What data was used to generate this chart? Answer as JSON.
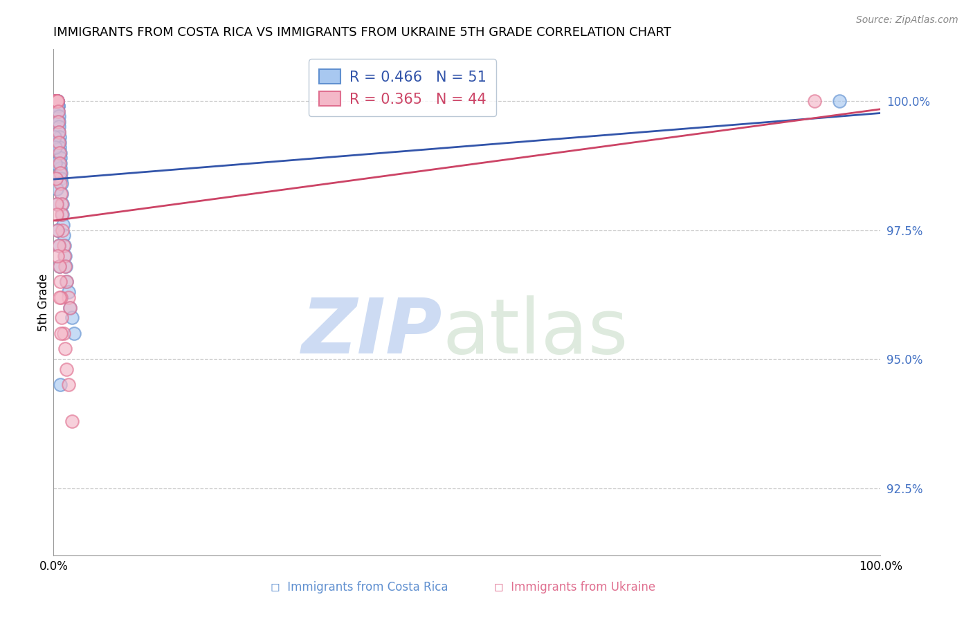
{
  "title": "IMMIGRANTS FROM COSTA RICA VS IMMIGRANTS FROM UKRAINE 5TH GRADE CORRELATION CHART",
  "source": "Source: ZipAtlas.com",
  "ylabel": "5th Grade",
  "y_ticks": [
    92.5,
    95.0,
    97.5,
    100.0
  ],
  "y_tick_labels": [
    "92.5%",
    "95.0%",
    "97.5%",
    "100.0%"
  ],
  "ylim": [
    91.2,
    101.0
  ],
  "xlim": [
    0.0,
    100.0
  ],
  "cr_R": 0.466,
  "cr_N": 51,
  "uk_R": 0.365,
  "uk_N": 44,
  "costa_rica_fill": "#a8c8f0",
  "ukraine_fill": "#f4b8c8",
  "costa_rica_edge": "#6090d0",
  "ukraine_edge": "#e07090",
  "costa_rica_line_color": "#3355aa",
  "ukraine_line_color": "#cc4466",
  "grid_color": "#cccccc",
  "watermark_zip_color": "#b8ccee",
  "watermark_atlas_color": "#c8ddc8",
  "costa_rica_x": [
    0.18,
    0.25,
    0.3,
    0.35,
    0.38,
    0.4,
    0.42,
    0.45,
    0.48,
    0.5,
    0.52,
    0.55,
    0.58,
    0.6,
    0.62,
    0.65,
    0.68,
    0.7,
    0.72,
    0.75,
    0.78,
    0.8,
    0.82,
    0.85,
    0.88,
    0.9,
    0.95,
    1.0,
    1.05,
    1.1,
    1.15,
    1.2,
    1.3,
    1.4,
    1.5,
    1.6,
    1.8,
    2.0,
    2.2,
    2.5,
    0.15,
    0.2,
    0.25,
    0.3,
    0.35,
    0.4,
    0.5,
    0.6,
    0.7,
    0.8,
    95.0
  ],
  "costa_rica_y": [
    100.0,
    100.0,
    100.0,
    100.0,
    100.0,
    100.0,
    100.0,
    100.0,
    100.0,
    100.0,
    99.9,
    99.9,
    99.8,
    99.7,
    99.6,
    99.5,
    99.4,
    99.3,
    99.2,
    99.1,
    99.0,
    98.9,
    98.8,
    98.7,
    98.6,
    98.5,
    98.4,
    98.2,
    98.0,
    97.8,
    97.6,
    97.4,
    97.2,
    97.0,
    96.8,
    96.5,
    96.3,
    96.0,
    95.8,
    95.5,
    99.3,
    99.1,
    98.8,
    98.5,
    98.3,
    98.0,
    97.5,
    97.2,
    96.8,
    94.5,
    100.0
  ],
  "ukraine_x": [
    0.18,
    0.22,
    0.28,
    0.32,
    0.36,
    0.4,
    0.44,
    0.48,
    0.52,
    0.56,
    0.6,
    0.65,
    0.7,
    0.75,
    0.8,
    0.85,
    0.9,
    0.95,
    1.0,
    1.1,
    1.2,
    1.3,
    1.4,
    1.6,
    1.8,
    2.0,
    0.3,
    0.4,
    0.5,
    0.6,
    0.7,
    0.8,
    0.9,
    1.0,
    1.2,
    1.4,
    1.6,
    1.8,
    2.2,
    0.35,
    0.5,
    0.7,
    0.9,
    92.0
  ],
  "ukraine_y": [
    100.0,
    100.0,
    100.0,
    100.0,
    100.0,
    100.0,
    100.0,
    100.0,
    99.8,
    99.6,
    99.4,
    99.2,
    99.0,
    98.8,
    98.6,
    98.4,
    98.2,
    98.0,
    97.8,
    97.5,
    97.2,
    97.0,
    96.8,
    96.5,
    96.2,
    96.0,
    98.5,
    98.0,
    97.5,
    97.2,
    96.8,
    96.5,
    96.2,
    95.8,
    95.5,
    95.2,
    94.8,
    94.5,
    93.8,
    97.8,
    97.0,
    96.2,
    95.5,
    100.0
  ]
}
